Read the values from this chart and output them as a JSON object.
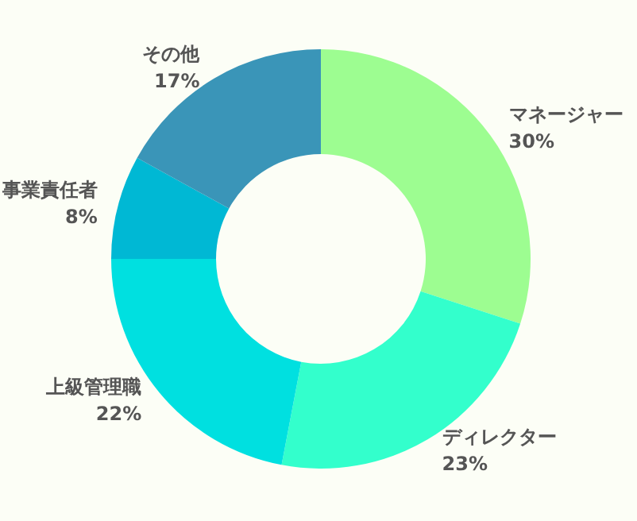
{
  "chart_data": {
    "type": "donut",
    "categories": [
      "マネージャー",
      "ディレクター",
      "上級管理職",
      "事業責任者",
      "その他"
    ],
    "values": [
      30,
      23,
      22,
      8,
      17
    ],
    "colors": [
      "#9dfd91",
      "#33ffcc",
      "#00e0e0",
      "#00b8d4",
      "#3a95b8"
    ],
    "value_labels": [
      "30%",
      "23%",
      "22%",
      "8%",
      "17%"
    ]
  }
}
